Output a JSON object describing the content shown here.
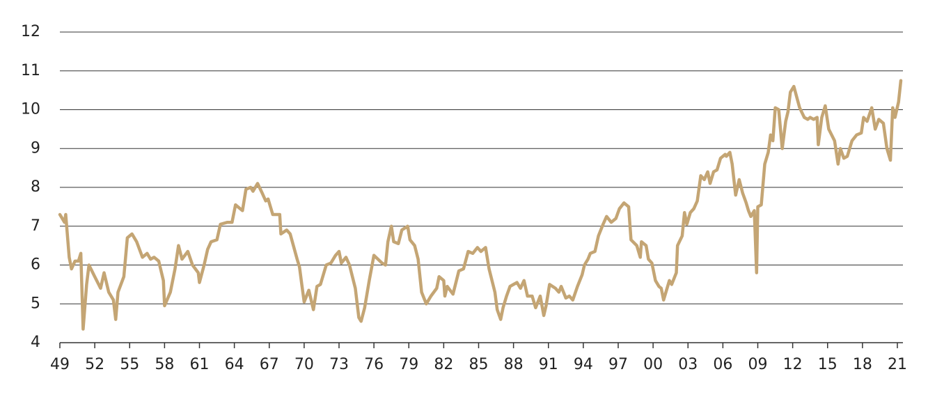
{
  "chart_data": {
    "type": "line",
    "x": [
      1949.0,
      1949.4,
      1949.5,
      1949.8,
      1950.0,
      1950.3,
      1950.6,
      1950.8,
      1951.0,
      1951.3,
      1951.5,
      1952.0,
      1952.5,
      1952.8,
      1953.2,
      1953.6,
      1953.8,
      1954.0,
      1954.5,
      1954.8,
      1955.2,
      1955.6,
      1956.1,
      1956.5,
      1956.8,
      1957.1,
      1957.5,
      1957.9,
      1958.0,
      1958.5,
      1958.9,
      1959.2,
      1959.5,
      1960.0,
      1960.4,
      1960.9,
      1961.0,
      1961.4,
      1961.7,
      1962.0,
      1962.5,
      1962.8,
      1963.4,
      1963.8,
      1964.1,
      1964.7,
      1965.0,
      1965.4,
      1965.6,
      1966.0,
      1966.4,
      1966.7,
      1966.9,
      1967.3,
      1967.9,
      1968.0,
      1968.5,
      1968.8,
      1969.4,
      1969.6,
      1969.8,
      1970.0,
      1970.4,
      1970.8,
      1971.1,
      1971.4,
      1971.9,
      1972.3,
      1972.7,
      1973.0,
      1973.2,
      1973.6,
      1973.9,
      1974.4,
      1974.7,
      1974.9,
      1975.2,
      1975.6,
      1976.0,
      1976.7,
      1977.0,
      1977.2,
      1977.5,
      1977.7,
      1978.1,
      1978.4,
      1978.9,
      1979.1,
      1979.5,
      1979.8,
      1980.1,
      1980.5,
      1980.9,
      1981.4,
      1981.6,
      1982.0,
      1982.1,
      1982.3,
      1982.8,
      1983.3,
      1983.7,
      1984.1,
      1984.5,
      1984.9,
      1985.2,
      1985.6,
      1985.9,
      1986.4,
      1986.6,
      1986.9,
      1987.1,
      1987.4,
      1987.7,
      1988.0,
      1988.3,
      1988.6,
      1988.9,
      1989.2,
      1989.6,
      1989.9,
      1990.3,
      1990.6,
      1990.8,
      1991.1,
      1991.6,
      1991.9,
      1992.1,
      1992.5,
      1992.8,
      1993.1,
      1993.5,
      1993.9,
      1994.1,
      1994.4,
      1994.6,
      1995.0,
      1995.3,
      1995.7,
      1996.0,
      1996.4,
      1996.8,
      1997.1,
      1997.5,
      1997.9,
      1998.1,
      1998.6,
      1998.9,
      1999.0,
      1999.4,
      1999.6,
      1999.9,
      2000.2,
      2000.5,
      2000.7,
      2000.9,
      2001.4,
      2001.6,
      2002.0,
      2002.1,
      2002.5,
      2002.7,
      2002.9,
      2003.2,
      2003.5,
      2003.8,
      2004.1,
      2004.4,
      2004.7,
      2004.9,
      2005.2,
      2005.5,
      2005.8,
      2006.2,
      2006.3,
      2006.6,
      2006.8,
      2007.1,
      2007.4,
      2007.7,
      2008.0,
      2008.2,
      2008.4,
      2008.7,
      2008.9,
      2009.0,
      2009.3,
      2009.6,
      2009.9,
      2010.1,
      2010.3,
      2010.5,
      2010.8,
      2011.1,
      2011.4,
      2011.6,
      2011.8,
      2012.1,
      2012.6,
      2013.0,
      2013.3,
      2013.5,
      2013.8,
      2014.1,
      2014.2,
      2014.5,
      2014.8,
      2015.1,
      2015.6,
      2015.9,
      2016.1,
      2016.4,
      2016.7,
      2017.1,
      2017.5,
      2017.9,
      2018.1,
      2018.4,
      2018.8,
      2019.1,
      2019.4,
      2019.8,
      2020.1,
      2020.4,
      2020.6,
      2020.8,
      2021.1,
      2021.3
    ],
    "series": [
      {
        "color": "#c4a574",
        "values": [
          7.3,
          7.1,
          7.3,
          6.2,
          5.9,
          6.1,
          6.1,
          6.3,
          4.35,
          5.5,
          6.0,
          5.7,
          5.4,
          5.8,
          5.3,
          5.1,
          4.6,
          5.3,
          5.7,
          6.7,
          6.8,
          6.6,
          6.2,
          6.3,
          6.15,
          6.2,
          6.1,
          5.6,
          4.95,
          5.3,
          5.9,
          6.5,
          6.15,
          6.35,
          6.0,
          5.8,
          5.55,
          6.0,
          6.4,
          6.6,
          6.65,
          7.05,
          7.1,
          7.1,
          7.55,
          7.4,
          7.95,
          8.0,
          7.9,
          8.1,
          7.85,
          7.65,
          7.7,
          7.3,
          7.3,
          6.8,
          6.9,
          6.8,
          6.15,
          5.95,
          5.5,
          5.05,
          5.35,
          4.85,
          5.45,
          5.5,
          6.0,
          6.05,
          6.25,
          6.35,
          6.05,
          6.2,
          6.0,
          5.4,
          4.65,
          4.55,
          4.9,
          5.6,
          6.25,
          6.05,
          6.0,
          6.6,
          7.0,
          6.6,
          6.55,
          6.9,
          7.0,
          6.65,
          6.5,
          6.15,
          5.3,
          5.0,
          5.2,
          5.4,
          5.7,
          5.6,
          5.2,
          5.45,
          5.25,
          5.85,
          5.9,
          6.35,
          6.3,
          6.45,
          6.35,
          6.45,
          5.9,
          5.3,
          4.85,
          4.6,
          4.9,
          5.2,
          5.45,
          5.5,
          5.55,
          5.4,
          5.6,
          5.2,
          5.2,
          4.9,
          5.2,
          4.7,
          4.95,
          5.5,
          5.4,
          5.3,
          5.45,
          5.15,
          5.2,
          5.1,
          5.45,
          5.75,
          6.0,
          6.15,
          6.3,
          6.35,
          6.75,
          7.05,
          7.25,
          7.1,
          7.2,
          7.45,
          7.6,
          7.5,
          6.65,
          6.5,
          6.2,
          6.6,
          6.5,
          6.15,
          6.05,
          5.6,
          5.45,
          5.4,
          5.1,
          5.6,
          5.5,
          5.8,
          6.5,
          6.75,
          7.35,
          7.05,
          7.35,
          7.45,
          7.65,
          8.3,
          8.2,
          8.4,
          8.1,
          8.4,
          8.45,
          8.75,
          8.85,
          8.8,
          8.9,
          8.6,
          7.8,
          8.2,
          7.85,
          7.6,
          7.4,
          7.25,
          7.4,
          5.8,
          7.5,
          7.55,
          8.6,
          8.9,
          9.35,
          9.2,
          10.05,
          10.0,
          9.0,
          9.7,
          9.95,
          10.45,
          10.6,
          10.05,
          9.8,
          9.75,
          9.8,
          9.75,
          9.8,
          9.1,
          9.8,
          10.1,
          9.5,
          9.2,
          8.6,
          9.0,
          8.75,
          8.8,
          9.2,
          9.35,
          9.4,
          9.8,
          9.7,
          10.05,
          9.5,
          9.75,
          9.65,
          9.0,
          8.7,
          10.05,
          9.8,
          10.2,
          10.75
        ]
      }
    ],
    "xlim": [
      1949,
      2021.3
    ],
    "xticks": [
      {
        "value": 1949,
        "label": "49"
      },
      {
        "value": 1952,
        "label": "52"
      },
      {
        "value": 1955,
        "label": "55"
      },
      {
        "value": 1958,
        "label": "58"
      },
      {
        "value": 1961,
        "label": "61"
      },
      {
        "value": 1964,
        "label": "64"
      },
      {
        "value": 1967,
        "label": "67"
      },
      {
        "value": 1970,
        "label": "70"
      },
      {
        "value": 1973,
        "label": "73"
      },
      {
        "value": 1976,
        "label": "76"
      },
      {
        "value": 1979,
        "label": "79"
      },
      {
        "value": 1982,
        "label": "82"
      },
      {
        "value": 1985,
        "label": "85"
      },
      {
        "value": 1988,
        "label": "88"
      },
      {
        "value": 1991,
        "label": "91"
      },
      {
        "value": 1994,
        "label": "94"
      },
      {
        "value": 1997,
        "label": "97"
      },
      {
        "value": 2000,
        "label": "00"
      },
      {
        "value": 2003,
        "label": "03"
      },
      {
        "value": 2006,
        "label": "06"
      },
      {
        "value": 2009,
        "label": "09"
      },
      {
        "value": 2012,
        "label": "12"
      },
      {
        "value": 2015,
        "label": "15"
      },
      {
        "value": 2018,
        "label": "18"
      },
      {
        "value": 2021,
        "label": "21"
      }
    ],
    "ylim": [
      4,
      12
    ],
    "yticks": [
      4,
      5,
      6,
      7,
      8,
      9,
      10,
      11,
      12
    ],
    "grid": true
  }
}
